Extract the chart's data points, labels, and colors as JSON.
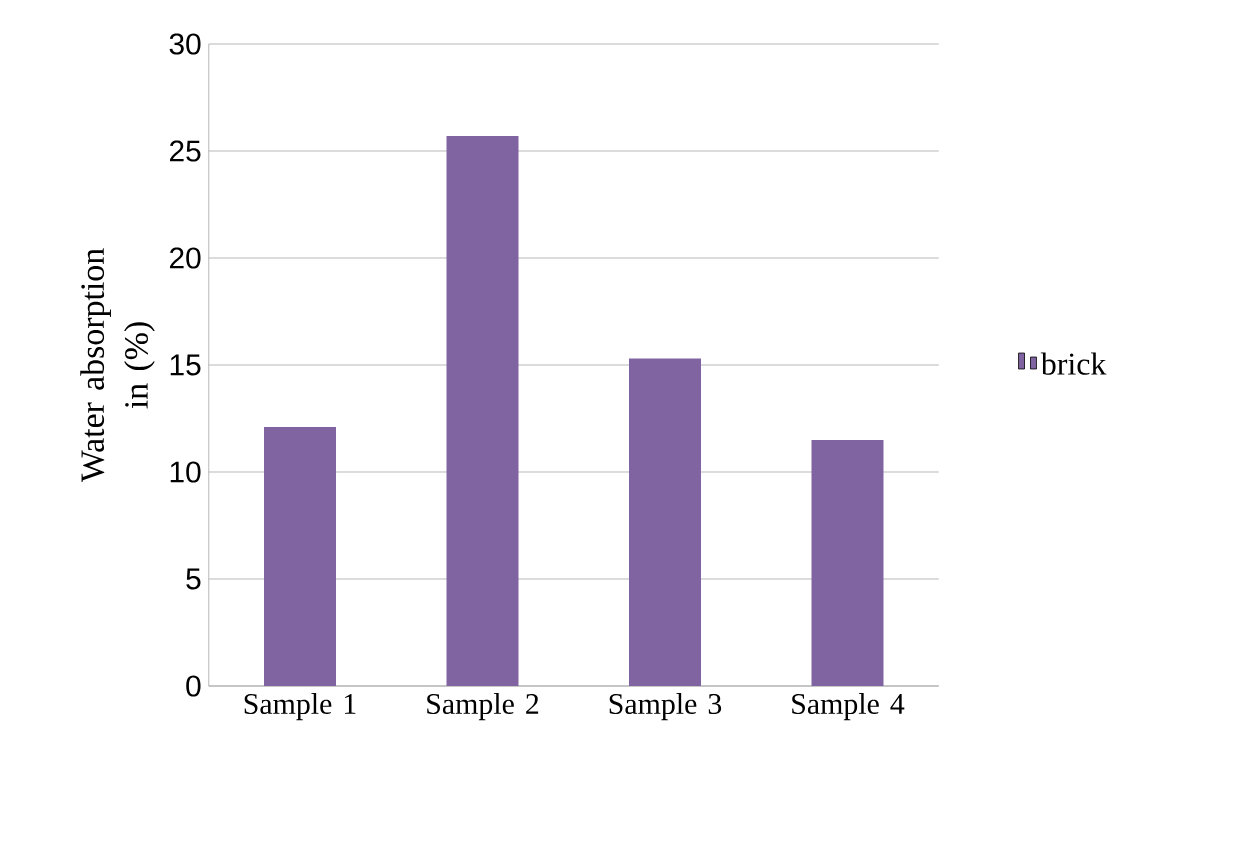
{
  "chart_data": {
    "type": "bar",
    "ylabel": "Water absorption in (%)",
    "categories": [
      "Sample 1",
      "Sample 2",
      "Sample 3",
      "Sample 4"
    ],
    "series": [
      {
        "name": "brick",
        "color": "#8064a2",
        "values": [
          12.1,
          25.7,
          15.3,
          11.5
        ]
      }
    ],
    "ylim": [
      0,
      30
    ],
    "yticks": [
      0,
      5,
      10,
      15,
      20,
      25,
      30
    ],
    "grid": "y",
    "legend": "right"
  }
}
